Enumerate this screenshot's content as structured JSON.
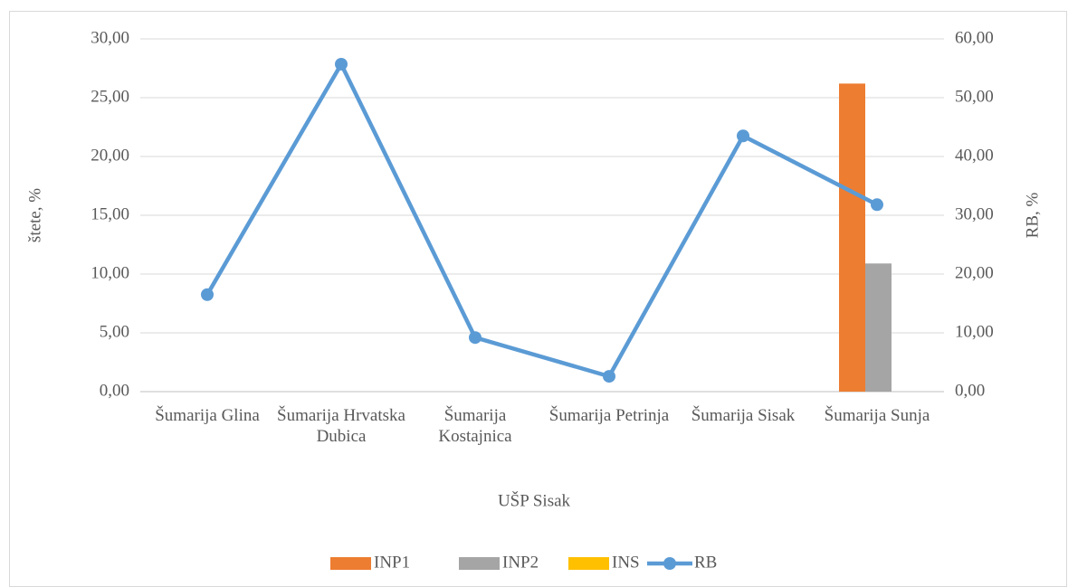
{
  "chart_data": {
    "type": "bar",
    "x_label": "UŠP Sisak",
    "y_label": "štete, %",
    "y2_label": "RB, %",
    "categories": [
      "Šumarija Glina",
      "Šumarija Hrvatska Dubica",
      "Šumarija Kostajnica",
      "Šumarija Petrinja",
      "Šumarija Sisak",
      "Šumarija Sunja"
    ],
    "series": [
      {
        "name": "INP1",
        "color": "#ed7d31",
        "values": [
          0,
          0,
          0,
          0,
          0,
          26.2
        ]
      },
      {
        "name": "INP2",
        "color": "#a5a5a5",
        "values": [
          0,
          0,
          0,
          0,
          0,
          10.9
        ]
      },
      {
        "name": "INS",
        "color": "#ffc000",
        "values": [
          0,
          0,
          0,
          0,
          0,
          0
        ]
      },
      {
        "name": "RB",
        "color": "#5b9bd5",
        "type": "line",
        "axis": "y2",
        "values": [
          16.5,
          55.7,
          9.2,
          2.6,
          43.5,
          31.8
        ]
      }
    ],
    "ylim": [
      0,
      30
    ],
    "yticks": [
      {
        "value": 0,
        "label": "0,00"
      },
      {
        "value": 5,
        "label": "5,00"
      },
      {
        "value": 10,
        "label": "10,00"
      },
      {
        "value": 15,
        "label": "15,00"
      },
      {
        "value": 20,
        "label": "20,00"
      },
      {
        "value": 25,
        "label": "25,00"
      },
      {
        "value": 30,
        "label": "30,00"
      }
    ],
    "y2lim": [
      0,
      60
    ],
    "y2ticks": [
      {
        "value": 0,
        "label": "0,00"
      },
      {
        "value": 10,
        "label": "10,00"
      },
      {
        "value": 20,
        "label": "20,00"
      },
      {
        "value": 30,
        "label": "30,00"
      },
      {
        "value": 40,
        "label": "40,00"
      },
      {
        "value": 50,
        "label": "50,00"
      },
      {
        "value": 60,
        "label": "60,00"
      }
    ],
    "grid": true,
    "legend": "bottom"
  }
}
